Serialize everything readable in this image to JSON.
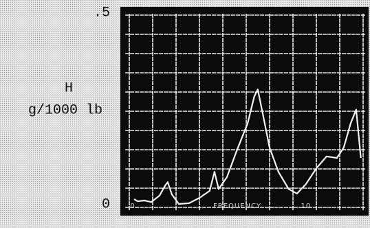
{
  "chart_data": {
    "type": "line",
    "y_label": "H",
    "y_units": "g/1000 lb",
    "x_label": "FREQUENCY",
    "x": [
      0.08,
      0.28,
      0.67,
      1.07,
      1.55,
      1.87,
      2.02,
      2.26,
      2.66,
      3.25,
      3.85,
      4.44,
      4.72,
      4.96,
      5.44,
      6.03,
      6.63,
      7.02,
      7.22,
      7.5,
      7.9,
      8.41,
      9.0,
      9.48,
      10.0,
      10.6,
      11.19,
      11.79,
      12.18,
      12.58,
      12.9,
      13.17
    ],
    "series": [
      {
        "color": "#f2f2f2",
        "values": [
          0.0125,
          0.007,
          0.009,
          0.005,
          0.022,
          0.048,
          0.057,
          0.025,
          0,
          0.002,
          0.016,
          0.034,
          0.084,
          0.039,
          0.07,
          0.142,
          0.21,
          0.281,
          0.299,
          0.237,
          0.147,
          0.084,
          0.039,
          0.027,
          0.052,
          0.093,
          0.124,
          0.12,
          0.147,
          0.21,
          0.246,
          0.12
        ]
      }
    ],
    "xlim": [
      0,
      13.5
    ],
    "xticks": [
      0,
      10
    ],
    "ylim": [
      0,
      0.5
    ],
    "yticks": [
      0,
      {
        "value": 0.5,
        "label": ".5"
      }
    ],
    "grid": true
  }
}
